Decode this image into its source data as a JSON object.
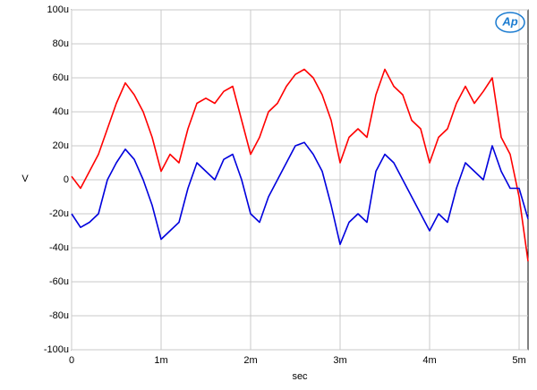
{
  "chart_data": {
    "type": "line",
    "logo": "Ap",
    "x_label": "sec",
    "y_label": "V",
    "x": [
      0,
      0.0001,
      0.0002,
      0.0003,
      0.0004,
      0.0005,
      0.0006,
      0.0007,
      0.0008,
      0.0009,
      0.001,
      0.0011,
      0.0012,
      0.0013,
      0.0014,
      0.0015,
      0.0016,
      0.0017,
      0.0018,
      0.0019,
      0.002,
      0.0021,
      0.0022,
      0.0023,
      0.0024,
      0.0025,
      0.0026,
      0.0027,
      0.0028,
      0.0029,
      0.003,
      0.0031,
      0.0032,
      0.0033,
      0.0034,
      0.0035,
      0.0036,
      0.0037,
      0.0038,
      0.0039,
      0.004,
      0.0041,
      0.0042,
      0.0043,
      0.0044,
      0.0045,
      0.0046,
      0.0047,
      0.0048,
      0.0049,
      0.005,
      0.0051
    ],
    "series": [
      {
        "color": "#ff0000",
        "values": [
          2e-06,
          -5e-06,
          5e-06,
          1.5e-05,
          3e-05,
          4.5e-05,
          5.7e-05,
          5e-05,
          4e-05,
          2.5e-05,
          5e-06,
          1.5e-05,
          1e-05,
          3e-05,
          4.5e-05,
          4.8e-05,
          4.5e-05,
          5.2e-05,
          5.5e-05,
          3.5e-05,
          1.5e-05,
          2.5e-05,
          4e-05,
          4.5e-05,
          5.5e-05,
          6.2e-05,
          6.5e-05,
          6e-05,
          5e-05,
          3.5e-05,
          1e-05,
          2.5e-05,
          3e-05,
          2.5e-05,
          5e-05,
          6.5e-05,
          5.5e-05,
          5e-05,
          3.5e-05,
          3e-05,
          1e-05,
          2.5e-05,
          3e-05,
          4.5e-05,
          5.5e-05,
          4.5e-05,
          5.2e-05,
          6e-05,
          2.5e-05,
          1.5e-05,
          -1e-05,
          -4.8e-05
        ]
      },
      {
        "color": "#0000dd",
        "values": [
          -2e-05,
          -2.8e-05,
          -2.5e-05,
          -2e-05,
          0,
          1e-05,
          1.8e-05,
          1.2e-05,
          0,
          -1.5e-05,
          -3.5e-05,
          -3e-05,
          -2.5e-05,
          -5e-06,
          1e-05,
          5e-06,
          0,
          1.2e-05,
          1.5e-05,
          0,
          -2e-05,
          -2.5e-05,
          -1e-05,
          0,
          1e-05,
          2e-05,
          2.2e-05,
          1.5e-05,
          5e-06,
          -1.5e-05,
          -3.8e-05,
          -2.5e-05,
          -2e-05,
          -2.5e-05,
          5e-06,
          1.5e-05,
          1e-05,
          0,
          -1e-05,
          -2e-05,
          -3e-05,
          -2e-05,
          -2.5e-05,
          -5e-06,
          1e-05,
          5e-06,
          0,
          2e-05,
          5e-06,
          -5e-06,
          -5e-06,
          -2.3e-05
        ]
      }
    ],
    "xlim": [
      0,
      0.0051
    ],
    "xticks": [
      0,
      {
        "value": 0.001,
        "label": "1m"
      },
      {
        "value": 0.002,
        "label": "2m"
      },
      {
        "value": 0.003,
        "label": "3m"
      },
      {
        "value": 0.004,
        "label": "4m"
      },
      {
        "value": 0.005,
        "label": "5m"
      }
    ],
    "ylim": [
      -0.0001,
      0.0001
    ],
    "yticks": [
      {
        "value": -0.0001,
        "label": "-100u"
      },
      {
        "value": -8e-05,
        "label": "-80u"
      },
      {
        "value": -6e-05,
        "label": "-60u"
      },
      {
        "value": -4e-05,
        "label": "-40u"
      },
      {
        "value": -2e-05,
        "label": "-20u"
      },
      0,
      {
        "value": 2e-05,
        "label": "20u"
      },
      {
        "value": 4e-05,
        "label": "40u"
      },
      {
        "value": 6e-05,
        "label": "60u"
      },
      {
        "value": 8e-05,
        "label": "80u"
      },
      {
        "value": 0.0001,
        "label": "100u"
      }
    ],
    "grid": true
  }
}
